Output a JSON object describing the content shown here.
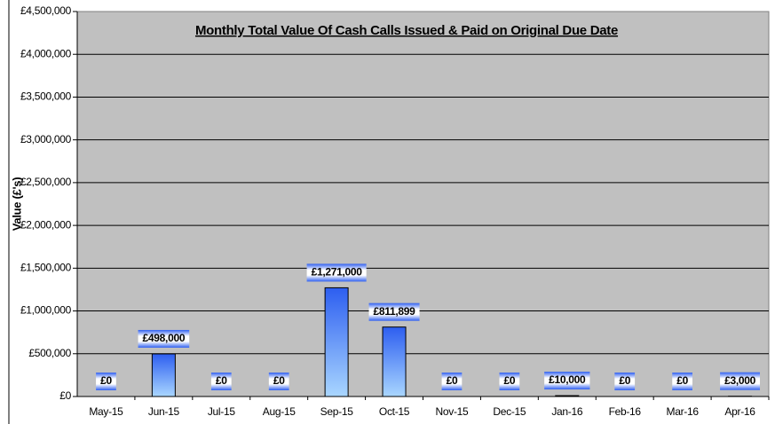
{
  "chart_data": {
    "type": "bar",
    "title": "Monthly Total Value Of Cash Calls Issued & Paid on Original  Due Date",
    "y_label": "Value (£'s)",
    "categories": [
      "May-15",
      "Jun-15",
      "Jul-15",
      "Aug-15",
      "Sep-15",
      "Oct-15",
      "Nov-15",
      "Dec-15",
      "Jan-16",
      "Feb-16",
      "Mar-16",
      "Apr-16"
    ],
    "values": [
      0,
      498000,
      0,
      0,
      1271000,
      811899,
      0,
      0,
      10000,
      0,
      0,
      3000
    ],
    "value_labels": [
      "£0",
      "£498,000",
      "£0",
      "£0",
      "£1,271,000",
      "£811,899",
      "£0",
      "£0",
      "£10,000",
      "£0",
      "£0",
      "£3,000"
    ],
    "color": "#3b6ff0",
    "ylim": [
      0,
      4500000
    ],
    "yticks": [
      {
        "value": 0,
        "label": "£0"
      },
      {
        "value": 500000,
        "label": "£500,000"
      },
      {
        "value": 1000000,
        "label": "£1,000,000"
      },
      {
        "value": 1500000,
        "label": "£1,500,000"
      },
      {
        "value": 2000000,
        "label": "£2,000,000"
      },
      {
        "value": 2500000,
        "label": "£2,500,000"
      },
      {
        "value": 3000000,
        "label": "£3,000,000"
      },
      {
        "value": 3500000,
        "label": "£3,500,000"
      },
      {
        "value": 4000000,
        "label": "£4,000,000"
      },
      {
        "value": 4500000,
        "label": "£4,500,000"
      }
    ],
    "grid": true
  }
}
